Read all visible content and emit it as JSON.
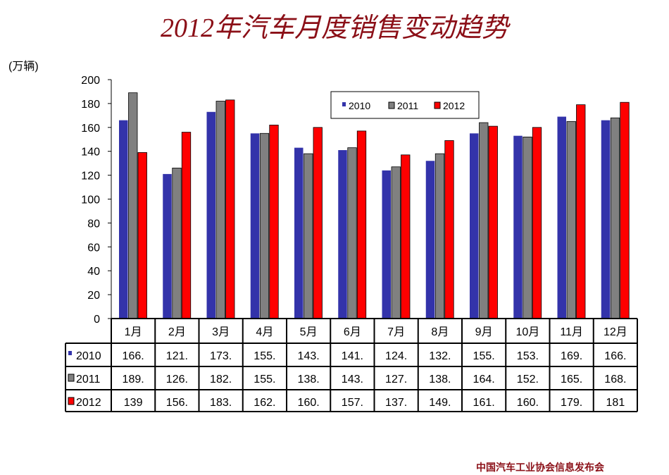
{
  "title": "2012年汽车月度销售变动趋势",
  "unit": "(万辆)",
  "footer": "中国汽车工业协会信息发布会",
  "chart_data": {
    "type": "bar",
    "title": "2012年汽车月度销售变动趋势",
    "ylabel": "(万辆)",
    "ylim": [
      0,
      200
    ],
    "yticks": [
      0,
      20,
      40,
      60,
      80,
      100,
      120,
      140,
      160,
      180,
      200
    ],
    "legend_position": "top-right",
    "categories": [
      "1月",
      "2月",
      "3月",
      "4月",
      "5月",
      "6月",
      "7月",
      "8月",
      "9月",
      "10月",
      "11月",
      "12月"
    ],
    "series": [
      {
        "name": "2010",
        "color": "#3333aa",
        "values": [
          166,
          121,
          173,
          155,
          143,
          141,
          124,
          132,
          155,
          153,
          169,
          166
        ],
        "table": [
          "166.",
          "121.",
          "173.",
          "155.",
          "143.",
          "141.",
          "124.",
          "132.",
          "155.",
          "153.",
          "169.",
          "166."
        ]
      },
      {
        "name": "2011",
        "color": "#808080",
        "values": [
          189,
          126,
          182,
          155,
          138,
          143,
          127,
          138,
          164,
          152,
          165,
          168
        ],
        "table": [
          "189.",
          "126.",
          "182.",
          "155.",
          "138.",
          "143.",
          "127.",
          "138.",
          "164.",
          "152.",
          "165.",
          "168."
        ]
      },
      {
        "name": "2012",
        "color": "#ff0000",
        "values": [
          139,
          156,
          183,
          162,
          160,
          157,
          137,
          149,
          161,
          160,
          179,
          181
        ],
        "table": [
          "139",
          "156.",
          "183.",
          "162.",
          "160.",
          "157.",
          "137.",
          "149.",
          "161.",
          "160.",
          "179.",
          "181"
        ]
      }
    ]
  }
}
